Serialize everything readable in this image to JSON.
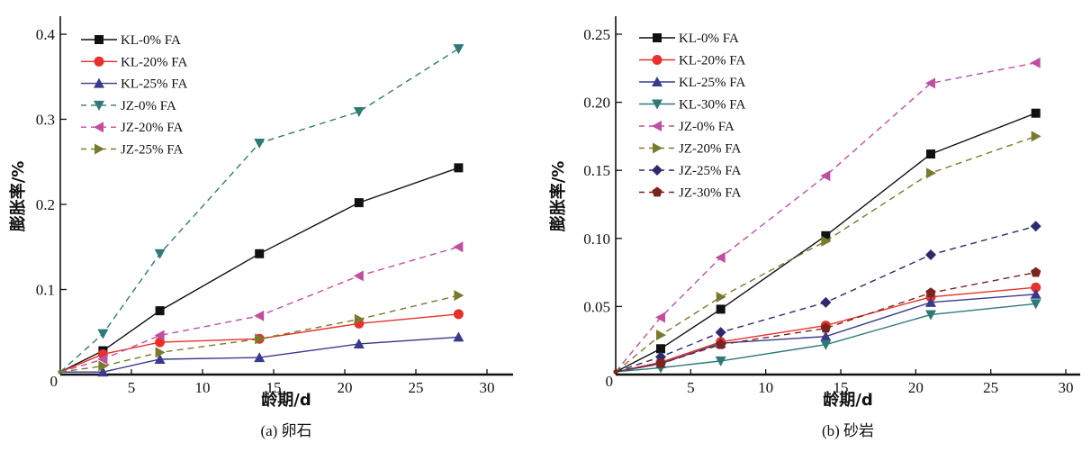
{
  "chart_data": [
    {
      "id": "a",
      "type": "line",
      "caption": "(a) 卵石",
      "xlabel": "龄期/d",
      "ylabel": "膨胀率/%",
      "xlim": [
        0,
        32
      ],
      "ylim": [
        0,
        0.42
      ],
      "xticks": [
        5,
        10,
        15,
        20,
        25,
        30
      ],
      "xtick_labels": [
        "5",
        "10",
        "15",
        "20",
        "25",
        "30"
      ],
      "yticks": [
        0.1,
        0.2,
        0.3,
        0.4
      ],
      "ytick_labels": [
        "0.1",
        "0.2",
        "0.3",
        "0.4"
      ],
      "origin_label": "0",
      "legend_position": "top-left",
      "x": [
        0,
        3,
        7,
        14,
        21,
        28
      ],
      "series": [
        {
          "name": "KL-0% FA",
          "color": "#111111",
          "dash": false,
          "marker": "square",
          "values": [
            0.003,
            0.028,
            0.075,
            0.142,
            0.202,
            0.243
          ]
        },
        {
          "name": "KL-20% FA",
          "color": "#e8312a",
          "dash": false,
          "marker": "circle",
          "values": [
            0.003,
            0.024,
            0.038,
            0.042,
            0.06,
            0.071
          ]
        },
        {
          "name": "KL-25% FA",
          "color": "#3a3a8c",
          "dash": false,
          "marker": "triangle-up",
          "values": [
            0.003,
            0.003,
            0.018,
            0.02,
            0.036,
            0.044
          ]
        },
        {
          "name": "JZ-0% FA",
          "color": "#2e7a77",
          "dash": true,
          "marker": "triangle-down",
          "values": [
            0.003,
            0.048,
            0.142,
            0.272,
            0.309,
            0.383
          ]
        },
        {
          "name": "JZ-20% FA",
          "color": "#c04fa0",
          "dash": true,
          "marker": "triangle-left",
          "values": [
            0.003,
            0.018,
            0.046,
            0.069,
            0.116,
            0.15
          ]
        },
        {
          "name": "JZ-25% FA",
          "color": "#7a7a2e",
          "dash": true,
          "marker": "triangle-right",
          "values": [
            0.003,
            0.01,
            0.026,
            0.042,
            0.065,
            0.093
          ]
        }
      ]
    },
    {
      "id": "b",
      "type": "line",
      "caption": "(b) 砂岩",
      "xlabel": "龄期/d",
      "ylabel": "膨胀率/%",
      "xlim": [
        0,
        31
      ],
      "ylim": [
        0,
        0.26
      ],
      "xticks": [
        5,
        10,
        15,
        20,
        25,
        30
      ],
      "xtick_labels": [
        "5",
        "10",
        "15",
        "20",
        "25",
        "30"
      ],
      "yticks": [
        0.05,
        0.1,
        0.15,
        0.2,
        0.25
      ],
      "ytick_labels": [
        "0.05",
        "0.10",
        "0.15",
        "0.20",
        "0.25"
      ],
      "origin_label": "0",
      "legend_position": "top-left",
      "x": [
        0,
        3,
        7,
        14,
        21,
        28
      ],
      "series": [
        {
          "name": "KL-0% FA",
          "color": "#111111",
          "dash": false,
          "marker": "square",
          "values": [
            0.002,
            0.019,
            0.048,
            0.102,
            0.162,
            0.192
          ]
        },
        {
          "name": "KL-20% FA",
          "color": "#e8312a",
          "dash": false,
          "marker": "circle",
          "values": [
            0.002,
            0.009,
            0.024,
            0.036,
            0.057,
            0.064
          ]
        },
        {
          "name": "KL-25% FA",
          "color": "#3a3a8c",
          "dash": false,
          "marker": "triangle-up",
          "values": [
            0.002,
            0.008,
            0.023,
            0.028,
            0.053,
            0.059
          ]
        },
        {
          "name": "KL-30% FA",
          "color": "#2e7a77",
          "dash": false,
          "marker": "triangle-down",
          "values": [
            0.002,
            0.005,
            0.01,
            0.022,
            0.044,
            0.052
          ]
        },
        {
          "name": "JZ-0% FA",
          "color": "#c04fa0",
          "dash": true,
          "marker": "triangle-left",
          "values": [
            0.002,
            0.042,
            0.086,
            0.146,
            0.214,
            0.229
          ]
        },
        {
          "name": "JZ-20% FA",
          "color": "#7a7a2e",
          "dash": true,
          "marker": "triangle-right",
          "values": [
            0.002,
            0.029,
            0.057,
            0.098,
            0.148,
            0.175
          ]
        },
        {
          "name": "JZ-25% FA",
          "color": "#2e2a6e",
          "dash": true,
          "marker": "diamond",
          "values": [
            0.002,
            0.013,
            0.031,
            0.053,
            0.088,
            0.109
          ]
        },
        {
          "name": "JZ-30% FA",
          "color": "#7a2420",
          "dash": true,
          "marker": "pentagon",
          "values": [
            0.002,
            0.008,
            0.022,
            0.034,
            0.06,
            0.075
          ]
        }
      ]
    }
  ]
}
